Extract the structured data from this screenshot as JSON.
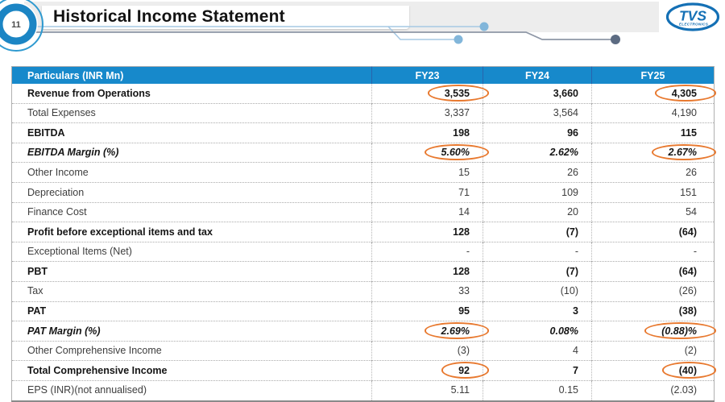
{
  "page": {
    "number": "11",
    "title": "Historical Income Statement"
  },
  "logo": {
    "brand": "TVS",
    "sub": "ELECTRONICS"
  },
  "colors": {
    "table_header_bg": "#1789cb",
    "highlight_oval": "#e8792f",
    "accent_blue": "#1b85c4",
    "logo_blue": "#1470b5",
    "banner_gray": "#ededed"
  },
  "table": {
    "particulars_header": "Particulars (INR Mn)",
    "year_columns": [
      "FY23",
      "FY24",
      "FY25"
    ],
    "rows": [
      {
        "label": "Revenue from Operations",
        "style": "bold",
        "values": [
          "3,535",
          "3,660",
          "4,305"
        ],
        "circled": [
          true,
          false,
          true
        ]
      },
      {
        "label": "Total Expenses",
        "style": "normal",
        "values": [
          "3,337",
          "3,564",
          "4,190"
        ],
        "circled": [
          false,
          false,
          false
        ]
      },
      {
        "label": "EBITDA",
        "style": "bold",
        "values": [
          "198",
          "96",
          "115"
        ],
        "circled": [
          false,
          false,
          false
        ]
      },
      {
        "label": "EBITDA Margin (%)",
        "style": "bold-italic",
        "values": [
          "5.60%",
          "2.62%",
          "2.67%"
        ],
        "circled": [
          true,
          false,
          true
        ]
      },
      {
        "label": "Other Income",
        "style": "normal",
        "values": [
          "15",
          "26",
          "26"
        ],
        "circled": [
          false,
          false,
          false
        ]
      },
      {
        "label": "Depreciation",
        "style": "normal",
        "values": [
          "71",
          "109",
          "151"
        ],
        "circled": [
          false,
          false,
          false
        ]
      },
      {
        "label": "Finance Cost",
        "style": "normal",
        "values": [
          "14",
          "20",
          "54"
        ],
        "circled": [
          false,
          false,
          false
        ]
      },
      {
        "label": "Profit before exceptional items and tax",
        "style": "bold",
        "values": [
          "128",
          "(7)",
          "(64)"
        ],
        "circled": [
          false,
          false,
          false
        ]
      },
      {
        "label": "Exceptional Items (Net)",
        "style": "normal",
        "values": [
          "-",
          "-",
          "-"
        ],
        "circled": [
          false,
          false,
          false
        ]
      },
      {
        "label": "PBT",
        "style": "bold",
        "values": [
          "128",
          "(7)",
          "(64)"
        ],
        "circled": [
          false,
          false,
          false
        ]
      },
      {
        "label": "Tax",
        "style": "normal",
        "values": [
          "33",
          "(10)",
          "(26)"
        ],
        "circled": [
          false,
          false,
          false
        ]
      },
      {
        "label": "PAT",
        "style": "bold",
        "values": [
          "95",
          "3",
          "(38)"
        ],
        "circled": [
          false,
          false,
          false
        ]
      },
      {
        "label": "PAT Margin (%)",
        "style": "bold-italic",
        "values": [
          "2.69%",
          "0.08%",
          "(0.88)%"
        ],
        "circled": [
          true,
          false,
          true
        ]
      },
      {
        "label": "Other Comprehensive Income",
        "style": "normal",
        "values": [
          "(3)",
          "4",
          "(2)"
        ],
        "circled": [
          false,
          false,
          false
        ]
      },
      {
        "label": "Total Comprehensive Income",
        "style": "bold",
        "values": [
          "92",
          "7",
          "(40)"
        ],
        "circled": [
          true,
          false,
          true
        ]
      },
      {
        "label": "EPS (INR)(not annualised)",
        "style": "normal",
        "values": [
          "5.11",
          "0.15",
          "(2.03)"
        ],
        "circled": [
          false,
          false,
          false
        ]
      }
    ]
  }
}
